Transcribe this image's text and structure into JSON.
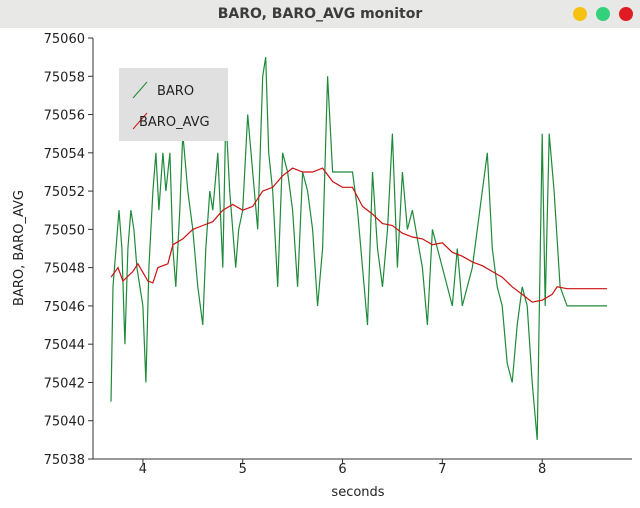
{
  "chart_data": {
    "type": "line",
    "title": "BARO, BARO_AVG monitor",
    "xlabel": "seconds",
    "ylabel": "BARO, BARO_AVG",
    "xlim": [
      3.5,
      8.9
    ],
    "xticks": [
      4,
      5,
      6,
      7,
      8
    ],
    "ylim": [
      75038,
      75060
    ],
    "yticks": [
      75038,
      75040,
      75042,
      75044,
      75046,
      75048,
      75050,
      75052,
      75054,
      75056,
      75058,
      75060
    ],
    "legend": "upper left",
    "series": [
      {
        "name": "BARO",
        "color": "#1f8a3a",
        "x": [
          3.68,
          3.7,
          3.73,
          3.76,
          3.79,
          3.82,
          3.85,
          3.88,
          3.91,
          3.94,
          3.97,
          4.0,
          4.03,
          4.06,
          4.1,
          4.13,
          4.16,
          4.2,
          4.23,
          4.27,
          4.3,
          4.33,
          4.37,
          4.4,
          4.45,
          4.5,
          4.55,
          4.6,
          4.63,
          4.67,
          4.7,
          4.75,
          4.8,
          4.83,
          4.87,
          4.93,
          4.96,
          5.0,
          5.05,
          5.1,
          5.15,
          5.2,
          5.23,
          5.26,
          5.3,
          5.35,
          5.4,
          5.45,
          5.5,
          5.55,
          5.6,
          5.65,
          5.7,
          5.75,
          5.8,
          5.85,
          5.9,
          6.0,
          6.1,
          6.15,
          6.2,
          6.25,
          6.3,
          6.35,
          6.4,
          6.45,
          6.5,
          6.55,
          6.6,
          6.65,
          6.7,
          6.8,
          6.85,
          6.9,
          7.0,
          7.1,
          7.15,
          7.2,
          7.3,
          7.45,
          7.5,
          7.55,
          7.6,
          7.65,
          7.7,
          7.75,
          7.8,
          7.85,
          7.9,
          7.95,
          8.0,
          8.03,
          8.07,
          8.12,
          8.18,
          8.25,
          8.65
        ],
        "values": [
          75041,
          75047,
          75049,
          75051,
          75049,
          75044,
          75049,
          75051,
          75050,
          75048,
          75047,
          75046,
          75042,
          75048,
          75052,
          75054,
          75051,
          75054,
          75052,
          75054,
          75049,
          75047,
          75051,
          75055,
          75052,
          75050,
          75047,
          75045,
          75049,
          75052,
          75051,
          75054,
          75048,
          75056,
          75052,
          75048,
          75050,
          75051,
          75056,
          75053,
          75050,
          75058,
          75059,
          75054,
          75052,
          75047,
          75054,
          75053,
          75051,
          75047,
          75053,
          75052,
          75050,
          75046,
          75049,
          75058,
          75053,
          75053,
          75053,
          75051,
          75048,
          75045,
          75053,
          75049,
          75047,
          75050,
          75055,
          75048,
          75053,
          75050,
          75051,
          75048,
          75045,
          75050,
          75048,
          75046,
          75049,
          75046,
          75048,
          75054,
          75049,
          75047,
          75046,
          75043,
          75042,
          75045,
          75047,
          75046,
          75042,
          75039,
          75055,
          75046,
          75055,
          75052,
          75047,
          75046,
          75046
        ]
      },
      {
        "name": "BARO_AVG",
        "color": "#cc1111",
        "x": [
          3.68,
          3.75,
          3.8,
          3.9,
          3.95,
          4.05,
          4.1,
          4.15,
          4.25,
          4.3,
          4.4,
          4.5,
          4.6,
          4.7,
          4.8,
          4.9,
          5.0,
          5.1,
          5.2,
          5.3,
          5.4,
          5.5,
          5.6,
          5.7,
          5.8,
          5.9,
          6.0,
          6.1,
          6.2,
          6.3,
          6.4,
          6.5,
          6.6,
          6.7,
          6.8,
          6.9,
          7.0,
          7.1,
          7.2,
          7.3,
          7.4,
          7.5,
          7.6,
          7.7,
          7.8,
          7.9,
          8.0,
          8.1,
          8.15,
          8.25,
          8.65
        ],
        "values": [
          75047.5,
          75048,
          75047.3,
          75047.8,
          75048.2,
          75047.3,
          75047.2,
          75048,
          75048.2,
          75049.2,
          75049.5,
          75050,
          75050.2,
          75050.4,
          75051,
          75051.3,
          75051,
          75051.2,
          75052,
          75052.2,
          75052.8,
          75053.2,
          75053,
          75053,
          75053.2,
          75052.5,
          75052.2,
          75052.2,
          75051.2,
          75050.8,
          75050.3,
          75050.2,
          75049.8,
          75049.6,
          75049.5,
          75049.2,
          75049.3,
          75048.8,
          75048.6,
          75048.3,
          75048.1,
          75047.8,
          75047.5,
          75047,
          75046.6,
          75046.2,
          75046.3,
          75046.6,
          75047,
          75046.9,
          75046.9
        ]
      }
    ]
  }
}
